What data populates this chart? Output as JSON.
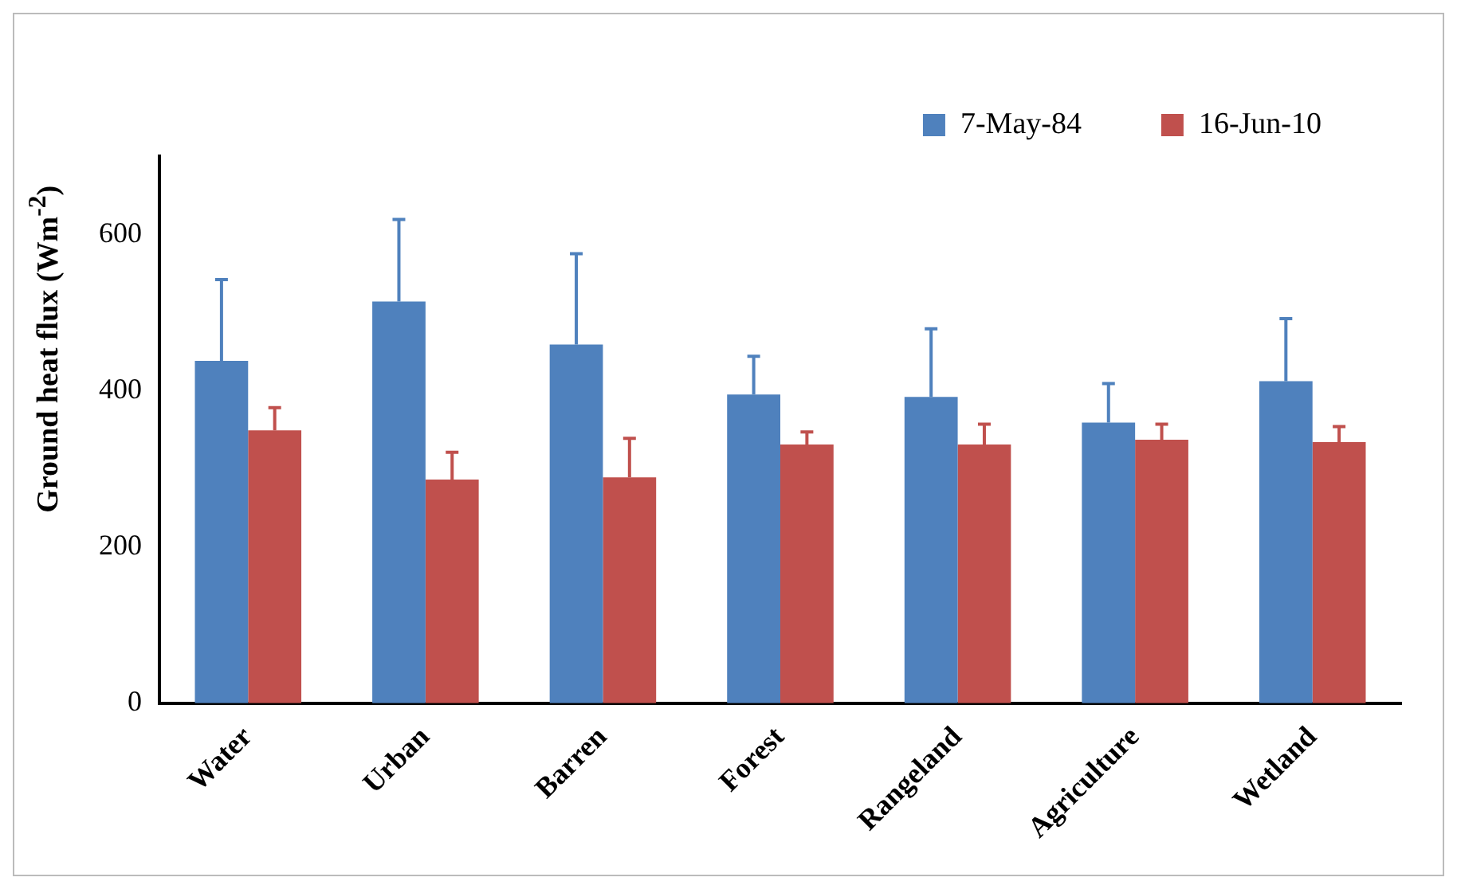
{
  "chart_data": {
    "type": "bar",
    "ylabel": "Ground heat flux (Wm$^{-2}$)",
    "categories": [
      "Water",
      "Urban",
      "Barren",
      "Forest",
      "Rangeland",
      "Agriculture",
      "Wetland"
    ],
    "series": [
      {
        "name": "7-May-84",
        "color": "#4f81bd",
        "values": [
          438,
          514,
          459,
          395,
          392,
          359,
          412
        ],
        "errors": [
          [
            438,
            542
          ],
          [
            514,
            619
          ],
          [
            459,
            575
          ],
          [
            395,
            444
          ],
          [
            392,
            479
          ],
          [
            359,
            409
          ],
          [
            412,
            492
          ]
        ]
      },
      {
        "name": "16-Jun-10",
        "color": "#c0504d",
        "values": [
          349,
          286,
          289,
          331,
          331,
          337,
          334
        ],
        "errors": [
          [
            349,
            378
          ],
          [
            286,
            321
          ],
          [
            289,
            339
          ],
          [
            331,
            347
          ],
          [
            331,
            357
          ],
          [
            337,
            357
          ],
          [
            334,
            354
          ]
        ]
      }
    ],
    "ylim": [
      0,
      700
    ],
    "yticks": [
      0,
      200,
      400,
      600
    ],
    "grid": false,
    "legend": "top right"
  }
}
